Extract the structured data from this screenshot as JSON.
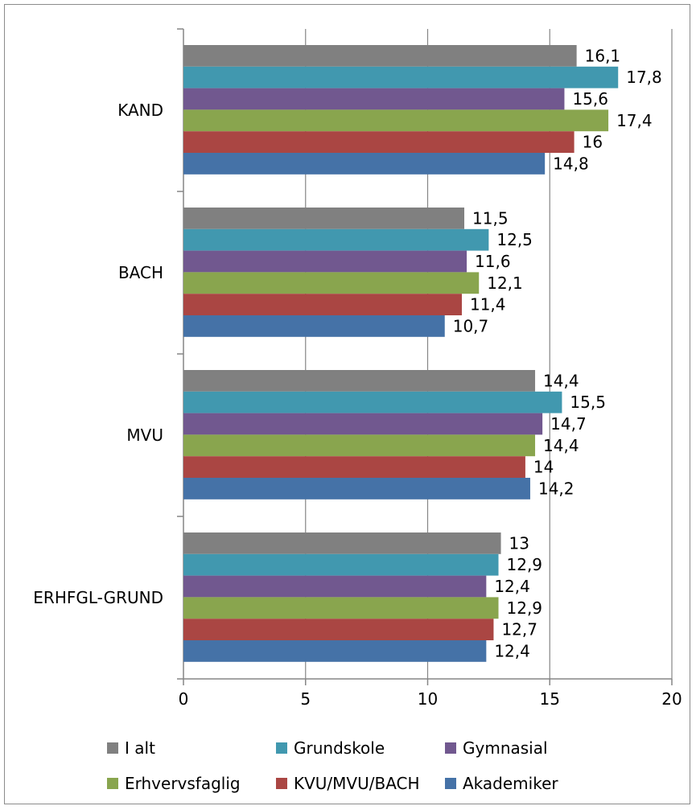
{
  "chart_data": {
    "type": "bar",
    "orientation": "horizontal",
    "categories": [
      "KAND",
      "BACH",
      "MVU",
      "ERHFGL-GRUND"
    ],
    "series": [
      {
        "name": "I alt",
        "color": "#808080",
        "values": [
          16.1,
          11.5,
          14.4,
          13
        ],
        "labels": [
          "16,1",
          "11,5",
          "14,4",
          "13"
        ]
      },
      {
        "name": "Grundskole",
        "color": "#4198AF",
        "values": [
          17.8,
          12.5,
          15.5,
          12.9
        ],
        "labels": [
          "17,8",
          "12,5",
          "15,5",
          "12,9"
        ]
      },
      {
        "name": "Gymnasial",
        "color": "#71588F",
        "values": [
          15.6,
          11.6,
          14.7,
          12.4
        ],
        "labels": [
          "15,6",
          "11,6",
          "14,7",
          "12,4"
        ]
      },
      {
        "name": "Erhvervsfaglig",
        "color": "#89A54E",
        "values": [
          17.4,
          12.1,
          14.4,
          12.9
        ],
        "labels": [
          "17,4",
          "12,1",
          "14,4",
          "12,9"
        ]
      },
      {
        "name": "KVU/MVU/BACH",
        "color": "#AA4643",
        "values": [
          16,
          11.4,
          14,
          12.7
        ],
        "labels": [
          "16",
          "11,4",
          "14",
          "12,7"
        ]
      },
      {
        "name": "Akademiker",
        "color": "#4572A7",
        "values": [
          14.8,
          10.7,
          14.2,
          12.4
        ],
        "labels": [
          "14,8",
          "10,7",
          "14,2",
          "12,4"
        ]
      }
    ],
    "xlim": [
      0,
      20
    ],
    "xticks": [
      0,
      5,
      10,
      15,
      20
    ],
    "xtick_labels": [
      "0",
      "5",
      "10",
      "15",
      "20"
    ],
    "grid": "vertical",
    "legend_position": "bottom",
    "title": "",
    "xlabel": "",
    "ylabel": ""
  }
}
